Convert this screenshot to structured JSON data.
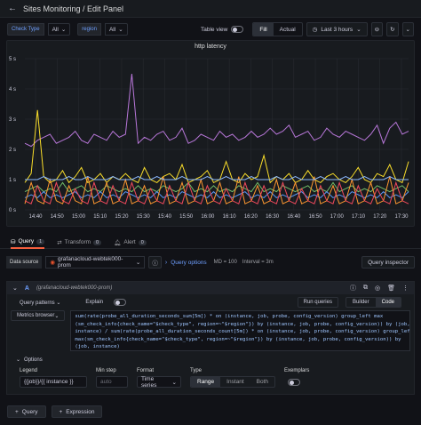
{
  "header": {
    "title": "Sites Monitoring / Edit Panel"
  },
  "vars": [
    {
      "label": "Check Type",
      "value": "All"
    },
    {
      "label": "region",
      "value": "All"
    }
  ],
  "toolbar": {
    "table_view": "Table view",
    "fill": "Fill",
    "actual": "Actual",
    "time_range": "Last 3 hours"
  },
  "panel": {
    "title": "http latency"
  },
  "chart_data": {
    "type": "line",
    "title": "http latency",
    "y_ticks": [
      "5 s",
      "4 s",
      "3 s",
      "2 s",
      "1 s",
      "0 s"
    ],
    "x_ticks": [
      "14:40",
      "14:50",
      "15:00",
      "15:10",
      "15:20",
      "15:30",
      "15:40",
      "15:50",
      "16:00",
      "16:10",
      "16:20",
      "16:30",
      "16:40",
      "16:50",
      "17:00",
      "17:10",
      "17:20",
      "17:30"
    ],
    "ylim": [
      0,
      5
    ],
    "series": [
      {
        "color": "#b877d9",
        "values": [
          2.2,
          2.1,
          2.3,
          2.4,
          2.5,
          2.2,
          2.3,
          2.4,
          2.6,
          2.3,
          2.2,
          2.5,
          2.4,
          2.3,
          2.6,
          2.4,
          2.5,
          4.5,
          2.2,
          2.4,
          2.3,
          2.5,
          2.6,
          2.3,
          2.4,
          2.7,
          2.2,
          2.3,
          2.5,
          2.4,
          2.3,
          2.6,
          2.4,
          2.5,
          2.3,
          2.4,
          2.6,
          2.4,
          2.5,
          2.7,
          2.5,
          2.6,
          2.8,
          2.4,
          2.5,
          2.6,
          2.3,
          2.4,
          2.7,
          2.5,
          2.4,
          2.6,
          2.5,
          2.4,
          2.3,
          2.5,
          2.8,
          2.2,
          2.7,
          2.9,
          2.5,
          2.6
        ]
      },
      {
        "color": "#fade2a",
        "values": [
          0.9,
          1.2,
          3.3,
          1.1,
          0.9,
          1.0,
          1.3,
          0.9,
          1.1,
          1.4,
          0.9,
          1.0,
          1.2,
          0.9,
          1.1,
          1.0,
          1.2,
          1.0,
          0.9,
          1.4,
          1.0,
          0.9,
          1.1,
          1.2,
          1.0,
          1.5,
          0.9,
          1.0,
          1.1,
          1.3,
          0.9,
          1.0,
          1.6,
          1.0,
          0.9,
          1.2,
          1.0,
          1.1,
          1.8,
          0.9,
          1.1,
          1.0,
          1.2,
          0.9,
          1.0,
          1.3,
          1.0,
          0.9,
          1.1,
          1.2,
          1.0,
          0.9,
          1.1,
          1.4,
          1.0,
          0.9,
          1.2,
          1.1,
          1.5,
          1.0,
          0.9,
          1.6
        ]
      },
      {
        "color": "#73bf69",
        "values": [
          0.6,
          0.7,
          0.8,
          0.6,
          0.7,
          0.6,
          0.9,
          0.6,
          0.7,
          0.8,
          0.6,
          0.7,
          0.6,
          0.8,
          0.7,
          0.6,
          0.7,
          0.6,
          0.8,
          0.6,
          0.7,
          0.6,
          0.8,
          0.7,
          0.6,
          0.7,
          0.9,
          0.6,
          0.7,
          0.6,
          0.8,
          0.6,
          0.7,
          0.6,
          0.8,
          0.7,
          0.6,
          0.9,
          0.6,
          0.7,
          0.6,
          0.8,
          0.7,
          0.6,
          0.7,
          0.8,
          0.6,
          0.7,
          0.6,
          0.9,
          0.6,
          0.7,
          0.8,
          0.6,
          0.7,
          0.6,
          0.8,
          0.7,
          0.6,
          0.7,
          0.8,
          0.6
        ]
      },
      {
        "color": "#5794f2",
        "values": [
          0.4,
          0.5,
          0.4,
          0.6,
          0.4,
          0.5,
          0.4,
          0.5,
          0.6,
          0.4,
          0.5,
          0.4,
          0.6,
          0.4,
          0.5,
          0.4,
          0.6,
          0.5,
          0.4,
          0.5,
          0.4,
          0.6,
          0.4,
          0.5,
          0.4,
          0.6,
          0.5,
          0.4,
          0.5,
          0.4,
          0.6,
          0.4,
          0.5,
          0.4,
          0.5,
          0.6,
          0.4,
          0.5,
          0.4,
          0.6,
          0.4,
          0.5,
          0.4,
          0.5,
          0.6,
          0.4,
          0.5,
          0.4,
          0.6,
          0.4,
          0.5,
          0.4,
          0.6,
          0.5,
          0.4,
          0.5,
          0.4,
          0.6,
          0.4,
          0.5,
          0.4,
          0.6
        ]
      },
      {
        "color": "#ff9830",
        "values": [
          0.2,
          0.9,
          0.3,
          0.2,
          1.0,
          0.3,
          0.2,
          0.8,
          0.3,
          0.2,
          1.1,
          0.2,
          0.3,
          0.9,
          0.2,
          0.3,
          1.0,
          0.2,
          0.3,
          0.8,
          0.2,
          0.3,
          1.1,
          0.2,
          0.3,
          0.9,
          0.2,
          0.3,
          1.0,
          0.2,
          0.3,
          0.9,
          0.2,
          0.3,
          1.1,
          0.2,
          0.3,
          0.8,
          0.2,
          0.3,
          1.0,
          0.2,
          0.3,
          0.9,
          0.2,
          0.3,
          1.1,
          0.2,
          0.3,
          0.8,
          0.2,
          0.3,
          1.0,
          0.2,
          0.3,
          0.9,
          0.2,
          0.3,
          1.1,
          0.2,
          0.3,
          0.9
        ]
      },
      {
        "color": "#f2495c",
        "values": [
          0.3,
          0.2,
          0.8,
          0.3,
          0.2,
          0.9,
          0.3,
          0.2,
          0.7,
          0.3,
          0.2,
          0.9,
          0.3,
          0.2,
          0.8,
          0.3,
          0.2,
          0.9,
          0.3,
          0.2,
          0.7,
          0.3,
          0.2,
          0.8,
          0.3,
          0.2,
          0.9,
          0.3,
          0.2,
          0.8,
          0.3,
          0.2,
          0.7,
          0.3,
          0.2,
          0.9,
          0.3,
          0.2,
          0.8,
          0.3,
          0.2,
          0.9,
          0.3,
          0.2,
          0.7,
          0.3,
          0.2,
          0.8,
          0.3,
          0.2,
          0.9,
          0.3,
          0.2,
          0.8,
          0.3,
          0.2,
          0.7,
          0.3,
          0.2,
          0.9,
          0.3,
          0.2
        ]
      },
      {
        "color": "#8ab8ff",
        "values": [
          1.0,
          1.0,
          1.0,
          1.1,
          1.0,
          1.0,
          1.0,
          1.1,
          1.0,
          1.0,
          1.1,
          1.0,
          1.0,
          1.0,
          1.1,
          1.0,
          1.0,
          1.0,
          1.1,
          1.0,
          1.0,
          1.1,
          1.0,
          1.0,
          1.0,
          1.1,
          1.0,
          1.0,
          1.0,
          1.1,
          1.0,
          1.0,
          1.1,
          1.0,
          1.0,
          1.0,
          1.1,
          1.0,
          1.0,
          1.0,
          1.1,
          1.0,
          1.0,
          1.1,
          1.0,
          1.0,
          1.0,
          1.1,
          1.0,
          1.0,
          1.0,
          1.1,
          1.0,
          1.0,
          1.1,
          1.0,
          1.0,
          1.0,
          1.1,
          1.0,
          1.0,
          1.0
        ]
      }
    ]
  },
  "tabs": [
    {
      "label": "Query",
      "count": "1"
    },
    {
      "label": "Transform",
      "count": "0"
    },
    {
      "label": "Alert",
      "count": "0"
    }
  ],
  "ds": {
    "label": "Data source",
    "name": "grafanacloud-webtek000-prom",
    "options": "Query options",
    "md": "MD = 100",
    "interval": "Interval = 3m",
    "inspector": "Query inspector"
  },
  "query": {
    "ref": "A",
    "ds": "(grafanacloud-webtek000-prom)",
    "patterns": "Query patterns",
    "explain": "Explain",
    "run": "Run queries",
    "builder": "Builder",
    "code": "Code",
    "metrics_browser": "Metrics browser",
    "code_lines": [
      "sum(rate(probe_all_duration_seconds_sum[5m]) * on (instance, job, probe, config_version) group_left max",
      "(sm_check_info{check_name=\"$check_type\", region=~\"$region\"}) by (instance, job, probe, config_version)) by (job,",
      "instance) / sum(rate(probe_all_duration_seconds_count[5m]) * on (instance, job, probe, config_version) group_left",
      "max(sm_check_info{check_name=\"$check_type\", region=~\"$region\"}) by (instance, job, probe, config_version)) by",
      "(job, instance)"
    ],
    "options": "Options",
    "legend_label": "Legend",
    "legend": "{{job}}/{{ instance }}",
    "minstep_label": "Min step",
    "minstep": "auto",
    "format_label": "Format",
    "format": "Time series",
    "type_label": "Type",
    "types": [
      "Range",
      "Instant",
      "Both"
    ],
    "exemplars": "Exemplars"
  },
  "add_query": "Query",
  "add_expr": "Expression"
}
